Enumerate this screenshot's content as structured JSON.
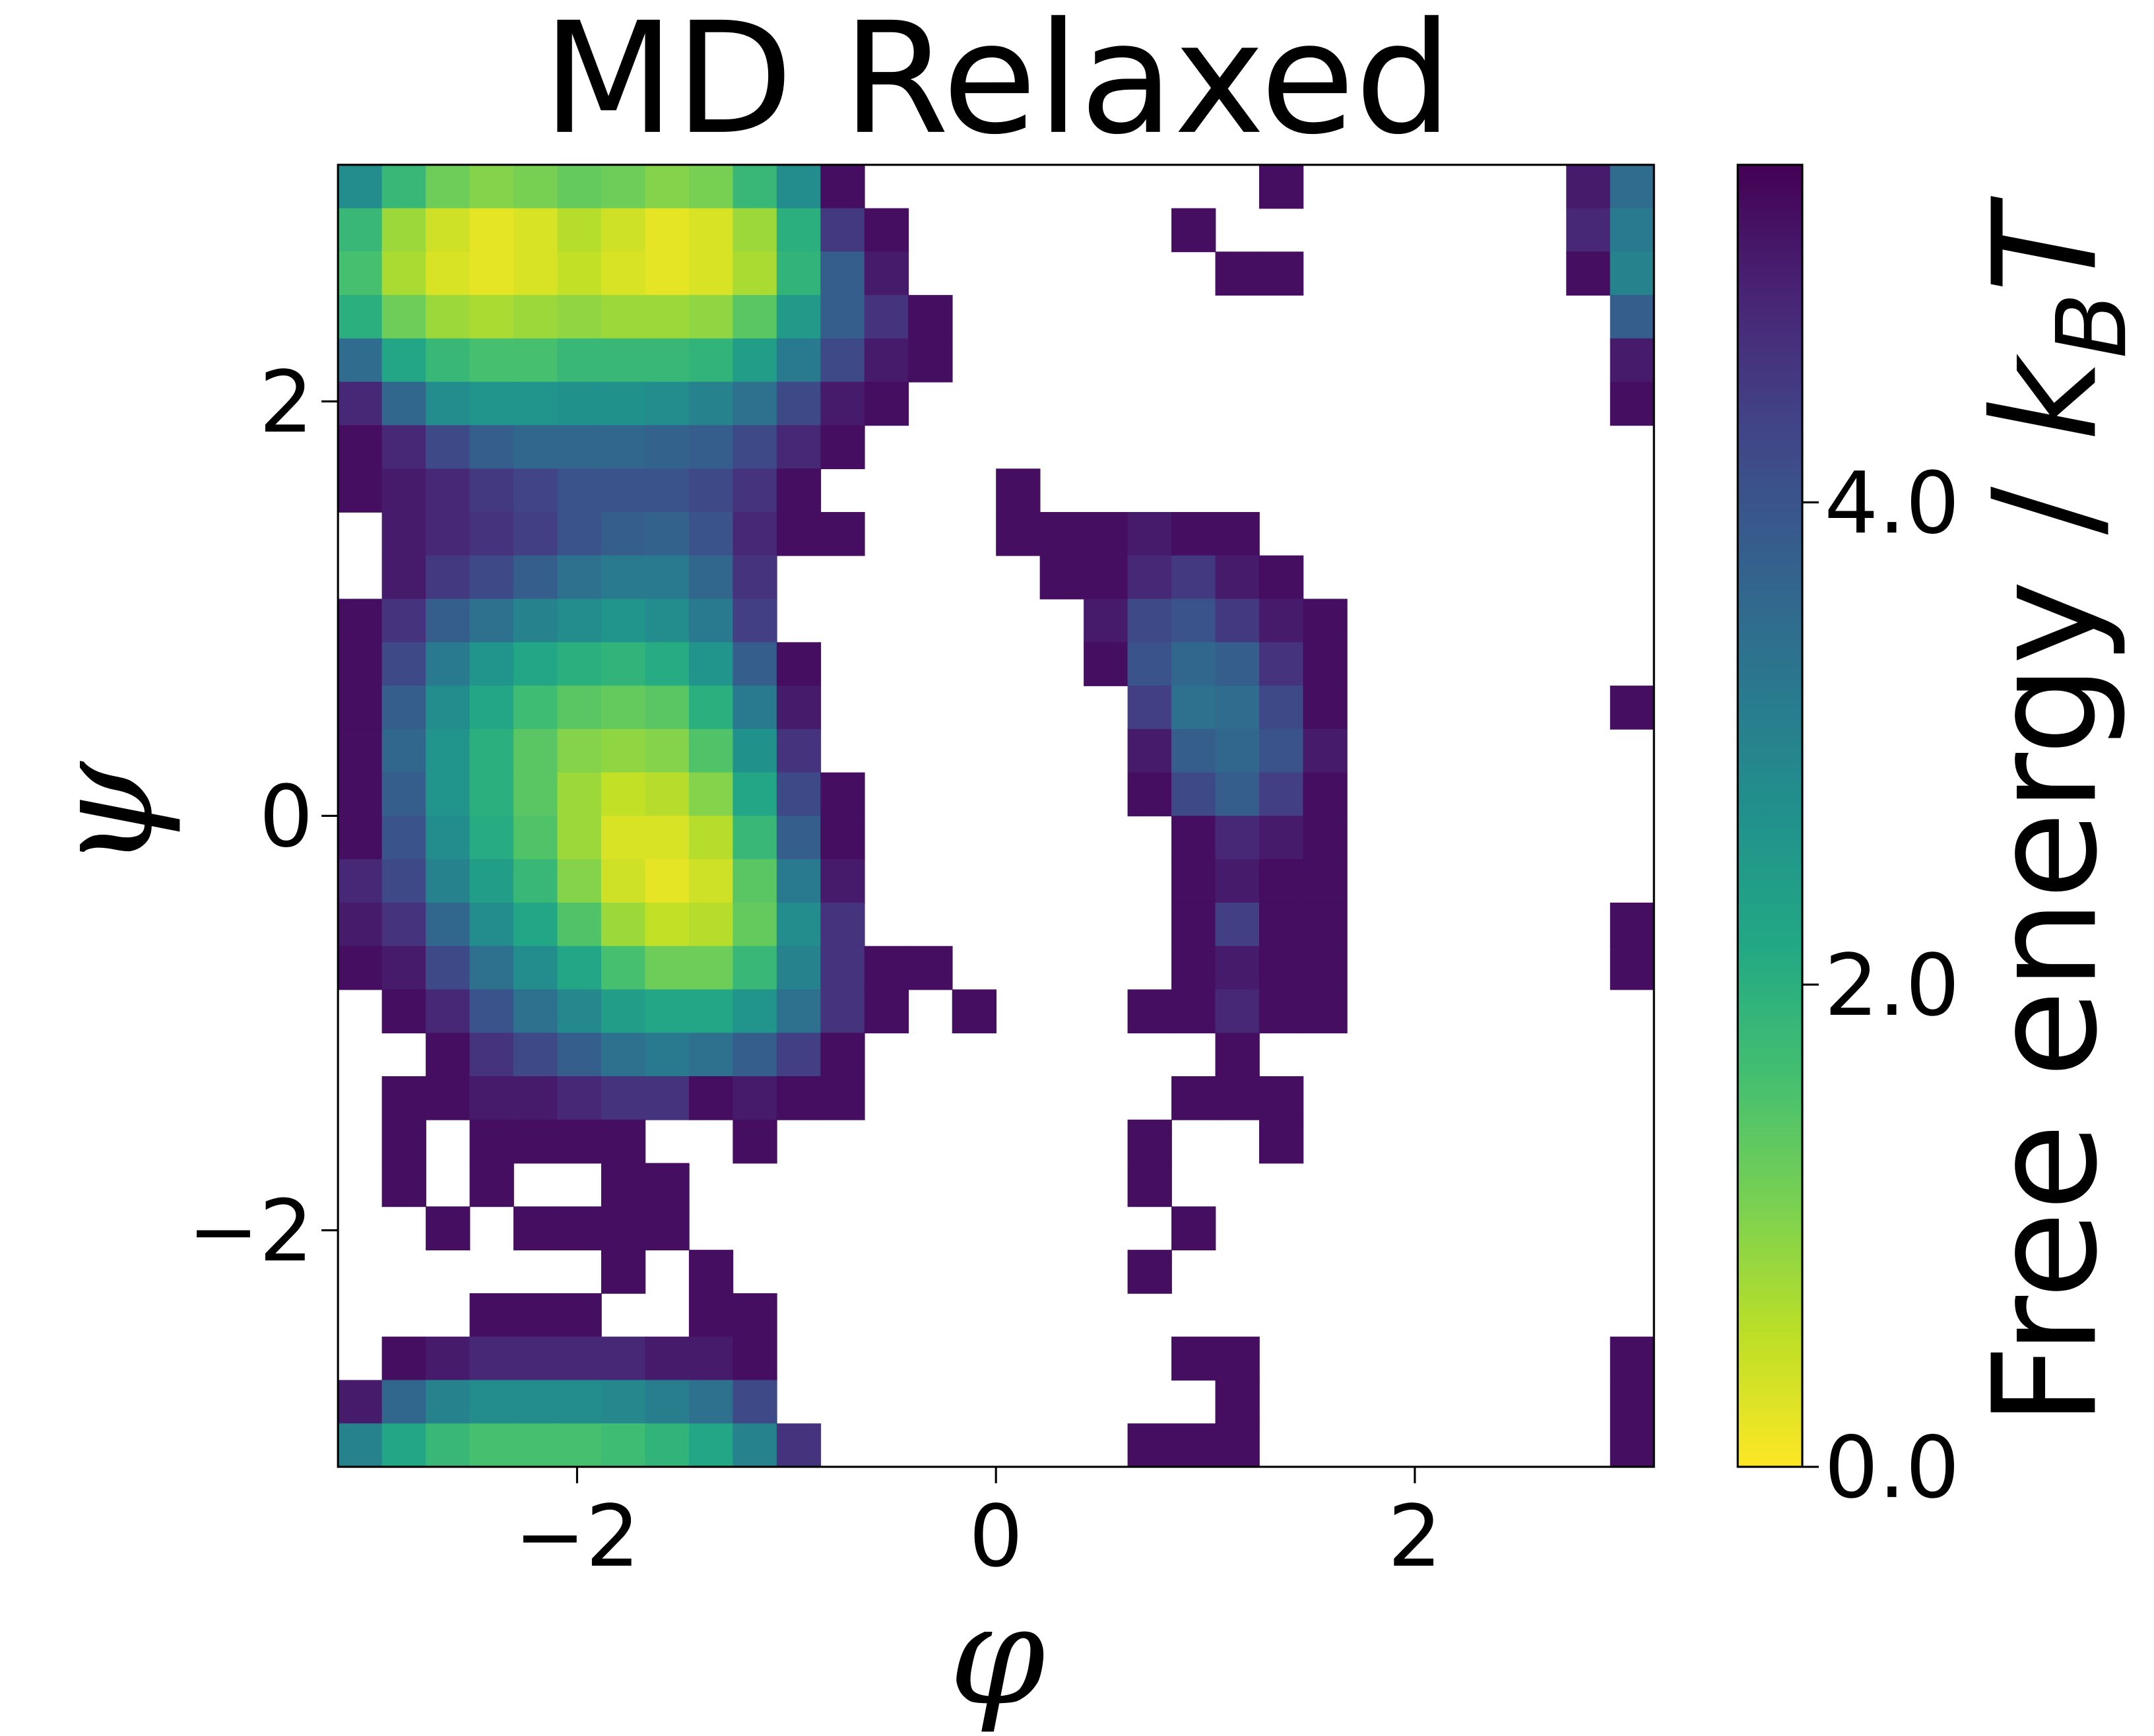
{
  "chart_data": {
    "type": "heatmap",
    "title": "MD Relaxed",
    "x_label": "φ",
    "y_label": "ψ",
    "colorbar_label": [
      "Free energy / ",
      "k",
      "B",
      "T"
    ],
    "colormap": "viridis_r",
    "xlim": [
      -3.1416,
      3.1416
    ],
    "ylim": [
      -3.1416,
      3.1416
    ],
    "xticks": [
      {
        "value": -2,
        "label": "−2"
      },
      0,
      2
    ],
    "yticks": [
      {
        "value": -2,
        "label": "−2"
      },
      0,
      2
    ],
    "clim": [
      0,
      5.4
    ],
    "cticks": [
      {
        "value": 0,
        "label": "0.0"
      },
      {
        "value": 2,
        "label": "2.0"
      },
      {
        "value": 4,
        "label": "4.0"
      }
    ],
    "z": [
      [
        2.8,
        1.8,
        1.2,
        1.0,
        1.1,
        1.3,
        1.2,
        1.0,
        1.1,
        1.8,
        2.8,
        5.2,
        null,
        null,
        null,
        null,
        null,
        null,
        null,
        null,
        null,
        5.2,
        null,
        null,
        null,
        null,
        null,
        null,
        5.0,
        3.5
      ],
      [
        1.8,
        0.8,
        0.4,
        0.2,
        0.3,
        0.6,
        0.4,
        0.2,
        0.3,
        0.8,
        2.0,
        4.5,
        5.2,
        null,
        null,
        null,
        null,
        null,
        null,
        5.2,
        null,
        null,
        null,
        null,
        null,
        null,
        null,
        null,
        4.8,
        3.2
      ],
      [
        1.6,
        0.7,
        0.3,
        0.2,
        0.3,
        0.5,
        0.3,
        0.2,
        0.3,
        0.7,
        1.9,
        3.8,
        5.0,
        null,
        null,
        null,
        null,
        null,
        null,
        null,
        5.2,
        5.2,
        null,
        null,
        null,
        null,
        null,
        null,
        5.2,
        3.0
      ],
      [
        2.0,
        1.2,
        0.8,
        0.7,
        0.8,
        0.9,
        0.8,
        0.8,
        0.9,
        1.4,
        2.5,
        3.8,
        4.6,
        5.2,
        null,
        null,
        null,
        null,
        null,
        null,
        null,
        null,
        null,
        null,
        null,
        null,
        null,
        null,
        null,
        3.8
      ],
      [
        3.5,
        2.2,
        1.8,
        1.6,
        1.6,
        1.8,
        1.8,
        1.8,
        1.9,
        2.4,
        3.2,
        4.2,
        5.0,
        5.2,
        null,
        null,
        null,
        null,
        null,
        null,
        null,
        null,
        null,
        null,
        null,
        null,
        null,
        null,
        null,
        5.0
      ],
      [
        4.8,
        3.6,
        2.8,
        2.6,
        2.6,
        2.7,
        2.7,
        2.8,
        3.0,
        3.4,
        4.2,
        5.0,
        5.2,
        null,
        null,
        null,
        null,
        null,
        null,
        null,
        null,
        null,
        null,
        null,
        null,
        null,
        null,
        null,
        null,
        5.2
      ],
      [
        5.2,
        4.8,
        4.2,
        3.8,
        3.6,
        3.6,
        3.6,
        3.7,
        3.8,
        4.2,
        4.8,
        5.2,
        null,
        null,
        null,
        null,
        null,
        null,
        null,
        null,
        null,
        null,
        null,
        null,
        null,
        null,
        null,
        null,
        null,
        null
      ],
      [
        5.2,
        5.0,
        4.8,
        4.5,
        4.3,
        4.0,
        4.0,
        4.0,
        4.2,
        4.6,
        5.2,
        null,
        null,
        null,
        null,
        5.2,
        null,
        null,
        null,
        null,
        null,
        null,
        null,
        null,
        null,
        null,
        null,
        null,
        null,
        null
      ],
      [
        null,
        5.0,
        4.8,
        4.6,
        4.4,
        4.0,
        3.8,
        3.7,
        4.0,
        4.8,
        5.2,
        5.2,
        null,
        null,
        null,
        5.2,
        5.2,
        5.2,
        5.0,
        5.2,
        5.2,
        null,
        null,
        null,
        null,
        null,
        null,
        null,
        null,
        null
      ],
      [
        null,
        5.0,
        4.5,
        4.2,
        3.8,
        3.4,
        3.2,
        3.2,
        3.6,
        4.6,
        null,
        null,
        null,
        null,
        null,
        null,
        5.2,
        5.2,
        4.8,
        4.5,
        5.0,
        5.2,
        null,
        null,
        null,
        null,
        null,
        null,
        null,
        null
      ],
      [
        5.2,
        4.6,
        3.8,
        3.4,
        3.0,
        2.8,
        2.6,
        2.8,
        3.2,
        4.4,
        null,
        null,
        null,
        null,
        null,
        null,
        null,
        5.0,
        4.2,
        4.0,
        4.5,
        5.0,
        5.2,
        null,
        null,
        null,
        null,
        null,
        null,
        null
      ],
      [
        5.2,
        4.2,
        3.2,
        2.6,
        2.2,
        2.0,
        1.9,
        2.1,
        2.6,
        3.8,
        5.2,
        null,
        null,
        null,
        null,
        null,
        null,
        5.2,
        4.0,
        3.6,
        3.8,
        4.6,
        5.2,
        null,
        null,
        null,
        null,
        null,
        null,
        null
      ],
      [
        5.2,
        3.8,
        2.8,
        2.2,
        1.7,
        1.4,
        1.3,
        1.4,
        2.0,
        3.2,
        5.0,
        null,
        null,
        null,
        null,
        null,
        null,
        null,
        4.4,
        3.4,
        3.5,
        4.2,
        5.2,
        null,
        null,
        null,
        null,
        null,
        null,
        5.2
      ],
      [
        5.2,
        3.6,
        2.6,
        2.0,
        1.4,
        1.0,
        0.9,
        1.0,
        1.5,
        2.7,
        4.6,
        null,
        null,
        null,
        null,
        null,
        null,
        null,
        5.0,
        3.8,
        3.6,
        4.0,
        5.0,
        null,
        null,
        null,
        null,
        null,
        null,
        null
      ],
      [
        5.2,
        3.8,
        2.6,
        2.0,
        1.4,
        0.8,
        0.5,
        0.6,
        1.0,
        2.2,
        4.2,
        5.2,
        null,
        null,
        null,
        null,
        null,
        null,
        5.2,
        4.2,
        3.8,
        4.4,
        5.2,
        null,
        null,
        null,
        null,
        null,
        null,
        null
      ],
      [
        5.2,
        4.0,
        2.8,
        2.1,
        1.5,
        0.8,
        0.3,
        0.3,
        0.6,
        1.8,
        3.8,
        5.2,
        null,
        null,
        null,
        null,
        null,
        null,
        null,
        5.2,
        4.8,
        5.0,
        5.2,
        null,
        null,
        null,
        null,
        null,
        null,
        null
      ],
      [
        4.8,
        4.2,
        3.0,
        2.4,
        1.8,
        1.0,
        0.4,
        0.2,
        0.4,
        1.4,
        3.2,
        5.0,
        null,
        null,
        null,
        null,
        null,
        null,
        null,
        5.2,
        5.0,
        5.2,
        5.2,
        null,
        null,
        null,
        null,
        null,
        null,
        null
      ],
      [
        5.0,
        4.6,
        3.6,
        2.8,
        2.2,
        1.5,
        0.8,
        0.5,
        0.6,
        1.3,
        2.8,
        4.6,
        null,
        null,
        null,
        null,
        null,
        null,
        null,
        5.2,
        4.4,
        5.2,
        5.2,
        null,
        null,
        null,
        null,
        null,
        null,
        5.2
      ],
      [
        5.2,
        5.0,
        4.2,
        3.4,
        2.8,
        2.2,
        1.6,
        1.2,
        1.2,
        1.8,
        3.0,
        4.6,
        5.2,
        5.2,
        null,
        null,
        null,
        null,
        null,
        5.2,
        5.0,
        5.2,
        5.2,
        null,
        null,
        null,
        null,
        null,
        null,
        5.2
      ],
      [
        null,
        5.2,
        4.8,
        4.0,
        3.4,
        2.9,
        2.4,
        2.2,
        2.2,
        2.6,
        3.4,
        4.6,
        5.2,
        null,
        5.2,
        null,
        null,
        null,
        5.2,
        5.2,
        4.8,
        5.2,
        5.2,
        null,
        null,
        null,
        null,
        null,
        null,
        null
      ],
      [
        null,
        null,
        5.2,
        4.6,
        4.2,
        3.8,
        3.4,
        3.2,
        3.4,
        3.8,
        4.4,
        5.2,
        null,
        null,
        null,
        null,
        null,
        null,
        null,
        null,
        5.2,
        null,
        null,
        null,
        null,
        null,
        null,
        null,
        null,
        null
      ],
      [
        null,
        5.2,
        5.2,
        5.0,
        5.0,
        4.8,
        4.6,
        4.6,
        5.2,
        5.0,
        5.2,
        5.2,
        null,
        null,
        null,
        null,
        null,
        null,
        null,
        5.2,
        5.2,
        5.2,
        null,
        null,
        null,
        null,
        null,
        null,
        null,
        null
      ],
      [
        null,
        5.2,
        null,
        5.2,
        5.2,
        5.2,
        5.2,
        null,
        null,
        5.2,
        null,
        null,
        null,
        null,
        null,
        null,
        null,
        null,
        5.2,
        null,
        null,
        5.2,
        null,
        null,
        null,
        null,
        null,
        null,
        null,
        null
      ],
      [
        null,
        5.2,
        null,
        5.2,
        null,
        null,
        5.2,
        5.2,
        null,
        null,
        null,
        null,
        null,
        null,
        null,
        null,
        null,
        null,
        5.2,
        null,
        null,
        null,
        null,
        null,
        null,
        null,
        null,
        null,
        null,
        null
      ],
      [
        null,
        null,
        5.2,
        null,
        5.2,
        5.2,
        5.2,
        5.2,
        null,
        null,
        null,
        null,
        null,
        null,
        null,
        null,
        null,
        null,
        null,
        5.2,
        null,
        null,
        null,
        null,
        null,
        null,
        null,
        null,
        null,
        null
      ],
      [
        null,
        null,
        null,
        null,
        null,
        null,
        5.2,
        null,
        5.2,
        null,
        null,
        null,
        null,
        null,
        null,
        null,
        null,
        null,
        5.2,
        null,
        null,
        null,
        null,
        null,
        null,
        null,
        null,
        null,
        null,
        null
      ],
      [
        null,
        null,
        null,
        5.2,
        5.2,
        5.2,
        null,
        null,
        5.2,
        5.2,
        null,
        null,
        null,
        null,
        null,
        null,
        null,
        null,
        null,
        null,
        null,
        null,
        null,
        null,
        null,
        null,
        null,
        null,
        null,
        null
      ],
      [
        null,
        5.2,
        5.0,
        4.8,
        4.8,
        4.8,
        4.8,
        5.0,
        5.0,
        5.2,
        null,
        null,
        null,
        null,
        null,
        null,
        null,
        null,
        null,
        5.2,
        5.2,
        null,
        null,
        null,
        null,
        null,
        null,
        null,
        null,
        5.2
      ],
      [
        5.0,
        3.6,
        3.0,
        2.8,
        2.8,
        2.8,
        2.9,
        3.1,
        3.4,
        4.2,
        null,
        null,
        null,
        null,
        null,
        null,
        null,
        null,
        null,
        null,
        5.2,
        null,
        null,
        null,
        null,
        null,
        null,
        null,
        null,
        5.2
      ],
      [
        3.0,
        2.2,
        1.8,
        1.6,
        1.6,
        1.6,
        1.7,
        1.9,
        2.2,
        3.0,
        4.6,
        null,
        null,
        null,
        null,
        null,
        null,
        null,
        5.2,
        5.2,
        5.2,
        null,
        null,
        null,
        null,
        null,
        null,
        null,
        null,
        5.2
      ]
    ]
  }
}
